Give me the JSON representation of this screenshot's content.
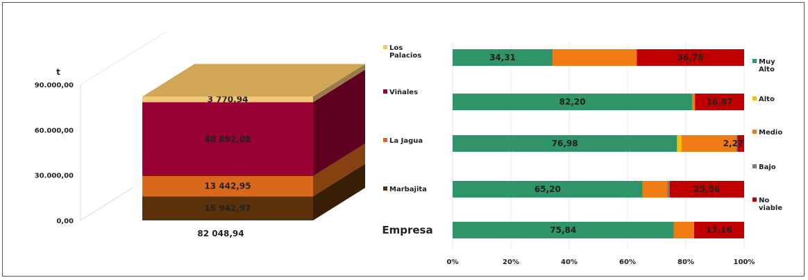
{
  "chart_data": [
    {
      "type": "bar",
      "variant": "3d-stacked-column",
      "ylabel": "t",
      "ylim": [
        0,
        90000
      ],
      "yticks": [
        "0,00",
        "30.000,00",
        "60.000,00",
        "90.000,00"
      ],
      "category": "82 048,94",
      "series": [
        {
          "name": "Marbajita",
          "value": 15942.97,
          "label": "15 942,97",
          "color": "#5a3108"
        },
        {
          "name": "La Jagua",
          "value": 13442.95,
          "label": "13 442,95",
          "color": "#d8691c"
        },
        {
          "name": "Viñales",
          "value": 48892.08,
          "label": "48 892,08",
          "color": "#990033"
        },
        {
          "name": "Los Palacios",
          "value": 3770.94,
          "label": "3 770,94",
          "color": "#f4c878"
        }
      ],
      "legend_order": [
        "Los Palacios",
        "Viñales",
        "La Jagua",
        "Marbajita"
      ],
      "legend_names": [
        "Los\nPalacios",
        "Viñales",
        "La Jagua",
        "Marbajita"
      ]
    },
    {
      "type": "bar",
      "variant": "100%-stacked-horizontal",
      "categories": [
        "Los Palacios",
        "Viñales",
        "La Jagua",
        "Marbajita",
        "Empresa"
      ],
      "visible_category_label": "Empresa",
      "xticks": [
        "0%",
        "20%",
        "40%",
        "60%",
        "80%",
        "100%"
      ],
      "series": [
        {
          "name": "Muy Alto",
          "color": "#2f9468",
          "values": [
            34.31,
            82.2,
            76.98,
            65.2,
            75.84
          ],
          "labels": [
            "34,31",
            "82,20",
            "76,98",
            "65,20",
            "75,84"
          ]
        },
        {
          "name": "Alto",
          "color": "#f2c200",
          "values": [
            0,
            0,
            1.5,
            0,
            0
          ],
          "labels": [
            "",
            "",
            "",
            "",
            ""
          ]
        },
        {
          "name": "Medio",
          "color": "#f07a14",
          "values": [
            28.91,
            0.93,
            18.75,
            8.4,
            7.0
          ],
          "labels": [
            "",
            "",
            "",
            "",
            ""
          ]
        },
        {
          "name": "Bajo",
          "color": "#8a7560",
          "values": [
            0,
            0,
            0.5,
            0.84,
            0
          ],
          "labels": [
            "",
            "",
            "",
            "",
            ""
          ]
        },
        {
          "name": "No viable",
          "color": "#c00000",
          "values": [
            36.78,
            16.87,
            2.27,
            25.56,
            17.16
          ],
          "labels": [
            "36,78",
            "16,87",
            "2,27",
            "25,56",
            "17,16"
          ]
        }
      ],
      "legend_names": [
        "Muy\nAlto",
        "Alto",
        "Medio",
        "Bajo",
        "No\nviable"
      ]
    }
  ]
}
